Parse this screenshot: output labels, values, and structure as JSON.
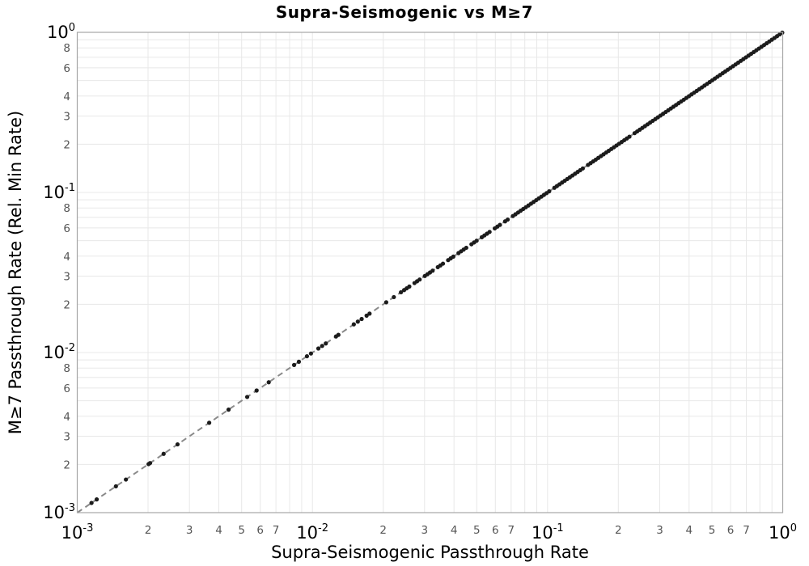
{
  "chart_data": {
    "type": "scatter",
    "title": "Supra-Seismogenic vs M≥7",
    "xlabel": "Supra-Seismogenic Passthrough Rate",
    "ylabel": "M≥7 Passthrough Rate (Rel. Min Rate)",
    "xscale": "log",
    "yscale": "log",
    "xlim": [
      0.001,
      1
    ],
    "ylim": [
      0.001,
      1
    ],
    "grid": true,
    "x_axis": {
      "major_base": "10",
      "major_exponents": [
        -3,
        -2,
        -1,
        0
      ],
      "minor_labels": [
        2,
        3,
        4,
        5,
        6,
        7
      ],
      "minor_label_decades": [
        -3,
        -2,
        -1
      ]
    },
    "y_axis": {
      "major_base": "10",
      "major_exponents": [
        0,
        -1,
        -2,
        -3
      ],
      "minor_labels": [
        8,
        6,
        4,
        3,
        2
      ],
      "minor_label_decades": [
        -1,
        -2,
        -3
      ]
    },
    "reference_line": {
      "name": "one-to-one-line",
      "relation": "y = x",
      "from": [
        0.001,
        0.001
      ],
      "to": [
        1,
        1
      ],
      "style": "dashed",
      "color": "#8a8a8a"
    },
    "series": [
      {
        "name": "passthrough-rate-points",
        "relation": "y = x (all points lie on the identity line)",
        "marker": "circle",
        "marker_color": "#1c1c1c",
        "x": [
          0.00115,
          0.00121,
          0.00146,
          0.00161,
          0.00201,
          0.00204,
          0.00233,
          0.00267,
          0.00364,
          0.0044,
          0.00528,
          0.00579,
          0.00652,
          0.00836,
          0.00876,
          0.00948,
          0.00986,
          0.0106,
          0.011,
          0.0114,
          0.0126,
          0.0129,
          0.015,
          0.0156,
          0.0162,
          0.017,
          0.0175,
          0.0206,
          0.0222,
          0.0238,
          0.02455,
          0.02518,
          0.02583,
          0.02717,
          0.02787,
          0.02858,
          0.03007,
          0.03084,
          0.03163,
          0.03245,
          0.03414,
          0.03501,
          0.03591,
          0.03778,
          0.03875,
          0.03974,
          0.04181,
          0.04288,
          0.04398,
          0.04511,
          0.04746,
          0.04868,
          0.04993,
          0.05253,
          0.05388,
          0.05526,
          0.05668,
          0.05963,
          0.06116,
          0.06273,
          0.066,
          0.06769,
          0.07121,
          0.07304,
          0.07492,
          0.07684,
          0.07882,
          0.08084,
          0.08292,
          0.08505,
          0.08723,
          0.08947,
          0.09177,
          0.09413,
          0.09655,
          0.09903,
          0.1016,
          0.1069,
          0.1096,
          0.1124,
          0.1153,
          0.1183,
          0.1213,
          0.1244,
          0.1276,
          0.1309,
          0.1343,
          0.1377,
          0.1412,
          0.1486,
          0.1524,
          0.1563,
          0.1603,
          0.1644,
          0.1687,
          0.173,
          0.1775,
          0.182,
          0.1867,
          0.1915,
          0.1964,
          0.2014,
          0.2066,
          0.2119,
          0.2173,
          0.2229,
          0.2345,
          0.2405,
          0.2467,
          0.253,
          0.2595,
          0.2662,
          0.273,
          0.28,
          0.2872,
          0.2946,
          0.3021,
          0.3099,
          0.3179,
          0.326,
          0.3344,
          0.343,
          0.3518,
          0.3608,
          0.3701,
          0.3796,
          0.3893,
          0.3993,
          0.4096,
          0.4201,
          0.4309,
          0.4419,
          0.4533,
          0.4649,
          0.4769,
          0.4891,
          0.5017,
          0.5146,
          0.5278,
          0.5414,
          0.5553,
          0.5695,
          0.5842,
          0.5992,
          0.6146,
          0.6304,
          0.6466,
          0.6632,
          0.6802,
          0.6977,
          0.7156,
          0.734,
          0.7529,
          0.7723,
          0.7921,
          0.8125,
          0.8334,
          0.8548,
          0.8768,
          0.8993,
          0.9225,
          0.9462,
          0.9705,
          0.9955
        ]
      }
    ],
    "colors": {
      "background": "#ffffff",
      "grid": "#e8e8e8",
      "axis_border": "#a6a6a6",
      "major_tick_label": "#000000",
      "minor_tick_label": "#555555",
      "marker": "#1c1c1c",
      "reference_line": "#8a8a8a"
    },
    "legend": "none"
  }
}
